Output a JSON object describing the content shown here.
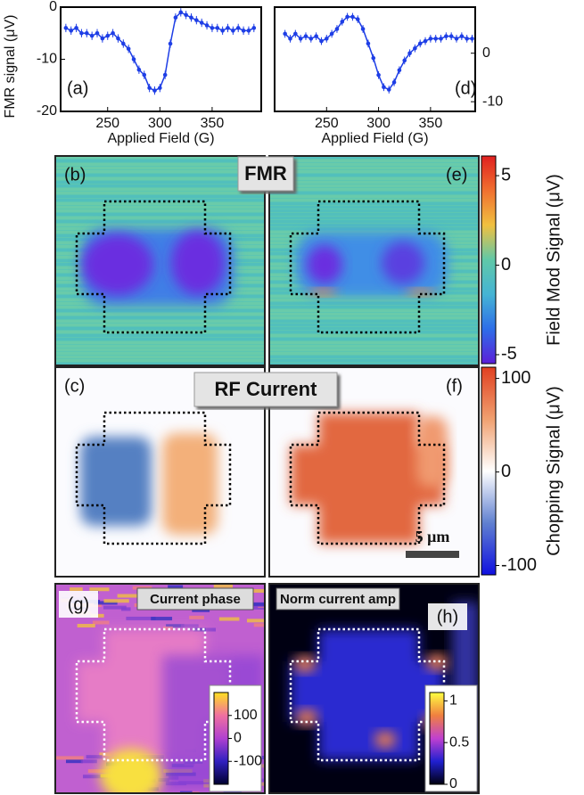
{
  "chart_data": [
    {
      "type": "line",
      "panel_label": "(a)",
      "xlabel": "Applied Field (G)",
      "ylabel": "FMR signal (μV)",
      "yaxis_side": "left",
      "xlim": [
        205,
        397
      ],
      "ylim": [
        -20,
        0
      ],
      "xticks": [
        250,
        300,
        350
      ],
      "yticks": [
        0,
        -10,
        -20
      ],
      "x": [
        210,
        215,
        220,
        225,
        230,
        235,
        240,
        245,
        250,
        255,
        260,
        265,
        270,
        275,
        280,
        285,
        290,
        295,
        300,
        305,
        310,
        315,
        320,
        325,
        330,
        335,
        340,
        345,
        350,
        355,
        360,
        365,
        370,
        375,
        380,
        385,
        390
      ],
      "series": [
        {
          "color": "#1e3ee6",
          "values": [
            -4,
            -4.5,
            -4,
            -5,
            -5,
            -5.5,
            -5,
            -6,
            -5.5,
            -5,
            -6,
            -7,
            -8,
            -10,
            -12,
            -13,
            -15.5,
            -16,
            -15.5,
            -13,
            -7,
            -2,
            -1,
            -1.5,
            -2,
            -2.5,
            -3,
            -3.5,
            -4,
            -4,
            -4.5,
            -4,
            -4.5,
            -4,
            -4.5,
            -4.5,
            -4
          ],
          "errors": [
            0.8,
            0.8,
            0.8,
            0.8,
            0.8,
            0.8,
            0.8,
            0.8,
            0.8,
            0.8,
            0.8,
            0.8,
            0.8,
            0.8,
            0.8,
            0.8,
            0.8,
            0.8,
            0.8,
            0.8,
            0.8,
            0.8,
            0.8,
            0.8,
            0.8,
            0.8,
            0.8,
            0.8,
            0.8,
            0.8,
            0.8,
            0.8,
            0.8,
            0.8,
            0.8,
            0.8,
            0.8
          ]
        }
      ]
    },
    {
      "type": "line",
      "panel_label": "(d)",
      "xlabel": "Applied Field (G)",
      "yaxis_side": "right",
      "xlim": [
        200,
        393
      ],
      "ylim": [
        -12,
        9.5
      ],
      "xticks": [
        250,
        300,
        350
      ],
      "yticks": [
        0,
        -10
      ],
      "x": [
        210,
        215,
        220,
        225,
        230,
        235,
        240,
        245,
        250,
        255,
        260,
        265,
        270,
        275,
        280,
        285,
        290,
        295,
        300,
        305,
        310,
        315,
        320,
        325,
        330,
        335,
        340,
        345,
        350,
        355,
        360,
        365,
        370,
        375,
        380,
        385,
        390
      ],
      "series": [
        {
          "color": "#1e3ee6",
          "values": [
            4,
            3,
            4,
            3,
            3.5,
            3,
            3.5,
            2.5,
            3,
            4,
            5,
            6.5,
            7.5,
            7.5,
            7,
            5,
            2,
            -1,
            -4.5,
            -7,
            -7.5,
            -6,
            -3.5,
            -1.5,
            0,
            1,
            2,
            2.5,
            3,
            3,
            3,
            3.5,
            3.5,
            3,
            3.5,
            3,
            3
          ],
          "errors": [
            0.8,
            0.8,
            0.8,
            0.8,
            0.8,
            0.8,
            0.8,
            0.8,
            0.8,
            0.8,
            0.8,
            0.8,
            0.8,
            0.8,
            0.8,
            0.8,
            0.8,
            0.8,
            0.8,
            0.8,
            0.8,
            0.8,
            0.8,
            0.8,
            0.8,
            0.8,
            0.8,
            0.8,
            0.8,
            0.8,
            0.8,
            0.8,
            0.8,
            0.8,
            0.8,
            0.8,
            0.8
          ]
        }
      ]
    },
    {
      "type": "heatmap",
      "title": "FMR",
      "panels": [
        {
          "label": "(b)"
        },
        {
          "label": "(e)"
        }
      ],
      "colorbar": {
        "label": "Field Mod Signal (μV)",
        "lim": [
          -5.5,
          6.1
        ],
        "ticks": [
          5,
          0,
          -5
        ],
        "colors": [
          "#5b1fd8",
          "#2e6ee8",
          "#45b4d4",
          "#60c8a8",
          "#f0c040",
          "#f07030",
          "#e02020"
        ]
      }
    },
    {
      "type": "heatmap",
      "title": "RF Current",
      "scalebar": "5 μm",
      "panels": [
        {
          "label": "(c)"
        },
        {
          "label": "(f)"
        }
      ],
      "colorbar": {
        "label": "Chopping Signal (μV)",
        "lim": [
          -110,
          112
        ],
        "ticks": [
          100,
          0,
          -100
        ],
        "colors": [
          "#1010e0",
          "#6080d0",
          "#ffffff",
          "#f0a070",
          "#e04020"
        ]
      }
    },
    {
      "type": "heatmap",
      "panels": [
        {
          "label": "(g)",
          "title": "Current phase",
          "colorbar": {
            "lim": [
              -200,
              200
            ],
            "ticks": [
              100,
              0,
              -100
            ],
            "colors": [
              "#000030",
              "#3020c0",
              "#b040d0",
              "#f070a0",
              "#ffe020"
            ]
          }
        },
        {
          "label": "(h)",
          "title": "Norm current amp",
          "colorbar": {
            "lim": [
              0,
              1.1
            ],
            "ticks": [
              1,
              0.5,
              0
            ],
            "colors": [
              "#000010",
              "#2020d0",
              "#c040d0",
              "#f08040",
              "#ffff40"
            ]
          }
        }
      ]
    }
  ]
}
